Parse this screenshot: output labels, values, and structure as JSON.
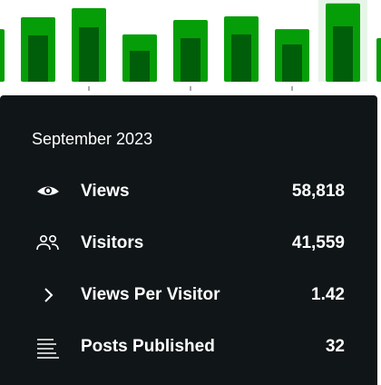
{
  "chart_data": {
    "type": "bar",
    "series": [
      {
        "color": "#069e08",
        "values": [
          39500,
          48400,
          55200,
          35500,
          46400,
          49100,
          39500,
          58818,
          32700
        ]
      },
      {
        "color": "#005e0b",
        "values": [
          null,
          34800,
          40900,
          23200,
          32700,
          35500,
          28000,
          41559,
          null
        ]
      }
    ],
    "ylim": [
      0,
      60000
    ],
    "selected_index": 7,
    "highlight_color": "#e7f5e8"
  },
  "tooltip": {
    "title": "September 2023",
    "rows": [
      {
        "label": "Views",
        "value": "58,818"
      },
      {
        "label": "Visitors",
        "value": "41,559"
      },
      {
        "label": "Views Per Visitor",
        "value": "1.42"
      },
      {
        "label": "Posts Published",
        "value": "32"
      }
    ]
  }
}
